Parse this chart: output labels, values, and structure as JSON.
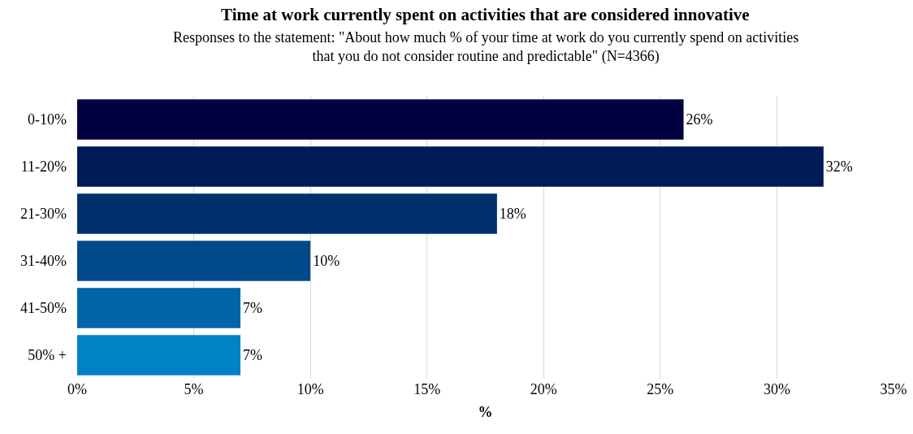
{
  "chart_data": {
    "type": "bar",
    "orientation": "horizontal",
    "title": "Time at work currently spent on activities that are considered innovative",
    "subtitle": "Responses to the statement: \"About how much % of your time at work do you currently spend on activities that you do not consider routine and predictable\" (N=4366)",
    "xlabel": "%",
    "categories": [
      "0-10%",
      "11-20%",
      "21-30%",
      "31-40%",
      "41-50%",
      "50% +"
    ],
    "values": [
      26,
      32,
      18,
      10,
      7,
      7
    ],
    "value_labels": [
      "26%",
      "32%",
      "18%",
      "10%",
      "7%",
      "7%"
    ],
    "colors": [
      "#000040",
      "#001a57",
      "#00306e",
      "#004a8a",
      "#0065a8",
      "#0082c4"
    ],
    "xlim": [
      0,
      35
    ],
    "xticks": [
      {
        "value": 0,
        "label": "0%"
      },
      {
        "value": 5,
        "label": "5%"
      },
      {
        "value": 10,
        "label": "10%"
      },
      {
        "value": 15,
        "label": "15%"
      },
      {
        "value": 20,
        "label": "20%"
      },
      {
        "value": 25,
        "label": "25%"
      },
      {
        "value": 30,
        "label": "30%"
      },
      {
        "value": 35,
        "label": "35%"
      }
    ],
    "grid": "x",
    "legend": false
  }
}
